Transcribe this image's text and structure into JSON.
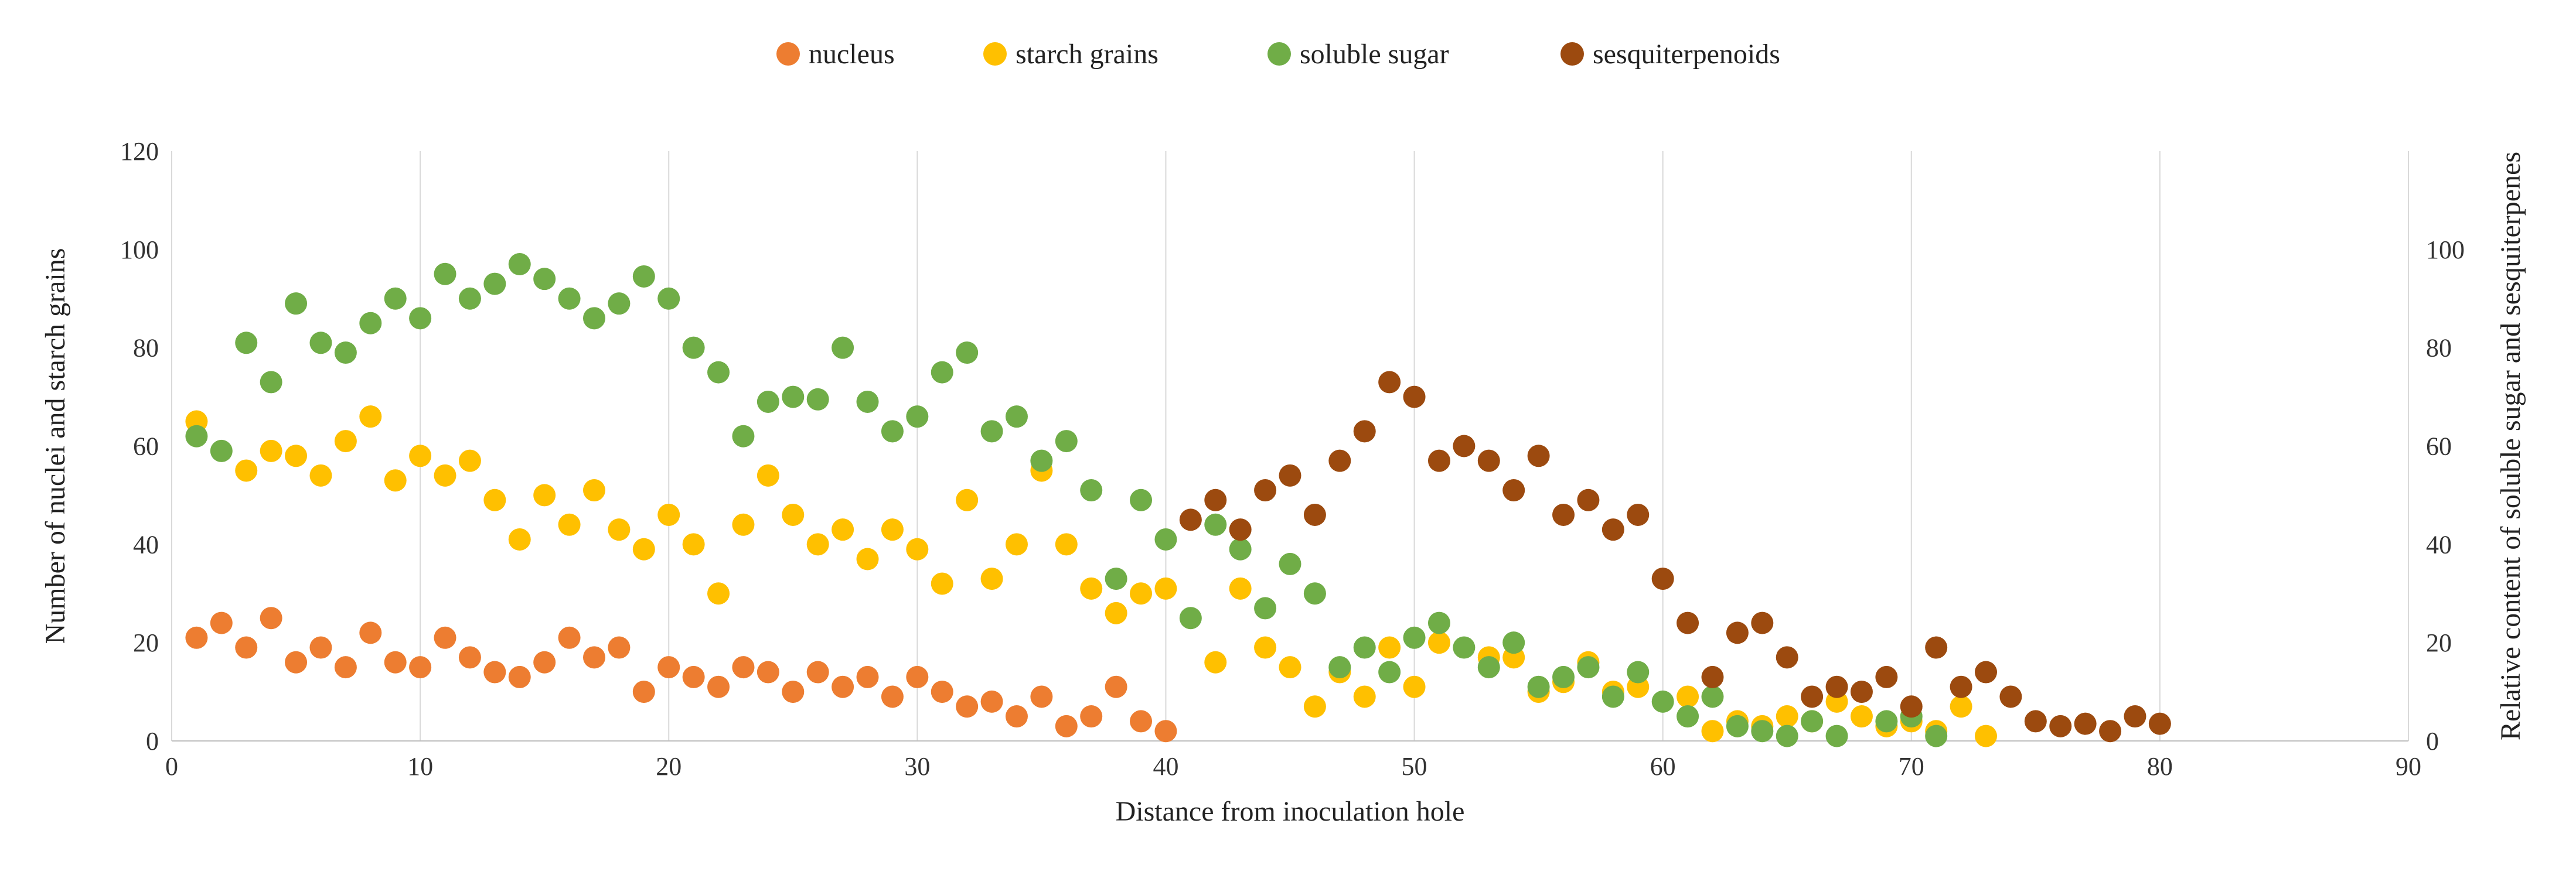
{
  "chart_data": {
    "type": "scatter",
    "title": "",
    "xlabel": "Distance from inoculation hole",
    "ylabel_left": "Number of nuclei and starch grains",
    "ylabel_right": "Relative content of soluble sugar and sesquiterpenes",
    "xlim": [
      0,
      90
    ],
    "ylim_left": [
      0,
      120
    ],
    "ylim_right": [
      0,
      120
    ],
    "x_ticks": [
      "0",
      "10",
      "20",
      "30",
      "40",
      "50",
      "60",
      "70",
      "80",
      "90"
    ],
    "y_ticks_left": [
      "0",
      "20",
      "40",
      "60",
      "80",
      "100",
      "120"
    ],
    "y_ticks_right": [
      "0",
      "20",
      "40",
      "60",
      "80",
      "100"
    ],
    "grid": "vertical",
    "legend_position": "top",
    "series": [
      {
        "name": "nucleus",
        "color": "#ED7D31",
        "axis": "left",
        "x": [
          1,
          2,
          3,
          4,
          5,
          6,
          7,
          8,
          9,
          10,
          11,
          12,
          13,
          14,
          15,
          16,
          17,
          18,
          19,
          20,
          21,
          22,
          23,
          24,
          25,
          26,
          27,
          28,
          29,
          30,
          31,
          32,
          33,
          34,
          35,
          36,
          37,
          38,
          39,
          40
        ],
        "y": [
          21,
          24,
          19,
          25,
          16,
          19,
          15,
          22,
          16,
          15,
          21,
          17,
          14,
          13,
          16,
          21,
          17,
          19,
          10,
          15,
          13,
          11,
          15,
          14,
          10,
          14,
          11,
          13,
          9,
          13,
          10,
          7,
          8,
          5,
          9,
          3,
          5,
          11,
          4,
          2
        ]
      },
      {
        "name": "starch grains",
        "color": "#FFC000",
        "axis": "left",
        "x": [
          1,
          3,
          4,
          5,
          6,
          7,
          8,
          9,
          10,
          11,
          12,
          13,
          14,
          15,
          16,
          17,
          18,
          19,
          20,
          21,
          22,
          23,
          24,
          25,
          26,
          27,
          28,
          29,
          30,
          31,
          32,
          33,
          34,
          35,
          36,
          37,
          38,
          39,
          40,
          42,
          43,
          44,
          45,
          46,
          47,
          48,
          49,
          50,
          51,
          53,
          54,
          55,
          56,
          57,
          58,
          59,
          61,
          62,
          63,
          64,
          65,
          66,
          67,
          68,
          69,
          70,
          71,
          72,
          73
        ],
        "y": [
          65,
          55,
          59,
          58,
          54,
          61,
          66,
          53,
          58,
          54,
          57,
          49,
          41,
          50,
          44,
          51,
          43,
          39,
          46,
          40,
          30,
          44,
          54,
          46,
          40,
          43,
          37,
          43,
          39,
          32,
          49,
          33,
          40,
          55,
          40,
          31,
          26,
          30,
          31,
          16,
          31,
          19,
          15,
          7,
          14,
          9,
          19,
          11,
          20,
          17,
          17,
          10,
          12,
          16,
          10,
          11,
          9,
          2,
          4,
          3,
          5,
          4,
          8,
          5,
          3,
          4,
          2,
          7,
          1
        ]
      },
      {
        "name": "soluble sugar",
        "color": "#70AD47",
        "axis": "right",
        "x": [
          1,
          2,
          3,
          4,
          5,
          6,
          7,
          8,
          9,
          10,
          11,
          12,
          13,
          14,
          15,
          16,
          17,
          18,
          19,
          20,
          21,
          22,
          23,
          24,
          25,
          26,
          27,
          28,
          29,
          30,
          31,
          32,
          33,
          34,
          35,
          36,
          37,
          38,
          39,
          40,
          41,
          42,
          43,
          44,
          45,
          46,
          47,
          48,
          49,
          50,
          51,
          52,
          53,
          54,
          55,
          56,
          57,
          58,
          59,
          60,
          61,
          62,
          63,
          64,
          65,
          66,
          67,
          69,
          70,
          71
        ],
        "y": [
          62,
          59,
          81,
          73,
          89,
          81,
          79,
          85,
          90,
          86,
          95,
          90,
          93,
          97,
          94,
          90,
          86,
          89,
          94.5,
          90,
          80,
          75,
          62,
          69,
          70,
          69.5,
          80,
          69,
          63,
          66,
          75,
          79,
          63,
          66,
          57,
          61,
          51,
          33,
          49,
          41,
          25,
          44,
          39,
          27,
          36,
          30,
          15,
          19,
          14,
          21,
          24,
          19,
          15,
          20,
          11,
          13,
          15,
          9,
          14,
          8,
          5,
          9,
          3,
          2,
          1,
          4,
          1,
          4,
          5,
          1
        ]
      },
      {
        "name": "sesquiterpenoids",
        "color": "#9C4A0F",
        "axis": "right",
        "x": [
          41,
          42,
          43,
          44,
          45,
          46,
          47,
          48,
          49,
          50,
          51,
          52,
          53,
          54,
          55,
          56,
          57,
          58,
          59,
          60,
          61,
          62,
          63,
          64,
          65,
          66,
          67,
          68,
          69,
          70,
          71,
          72,
          73,
          74,
          75,
          76,
          77,
          78,
          79,
          80
        ],
        "y": [
          45,
          49,
          43,
          51,
          54,
          46,
          57,
          63,
          73,
          70,
          57,
          60,
          57,
          51,
          58,
          46,
          49,
          43,
          46,
          33,
          24,
          13,
          22,
          24,
          17,
          9,
          11,
          10,
          13,
          7,
          19,
          11,
          14,
          9,
          4,
          3,
          3.5,
          2,
          5,
          3.5
        ]
      }
    ]
  }
}
